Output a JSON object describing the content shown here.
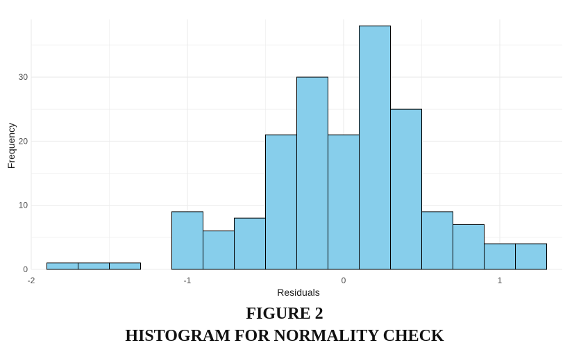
{
  "figure": {
    "number": "FIGURE 2",
    "title": "HISTOGRAM FOR NORMALITY CHECK"
  },
  "chart_data": {
    "type": "bar",
    "title": "",
    "xlabel": "Residuals",
    "ylabel": "Frequency",
    "bin_width": 0.2,
    "bin_starts": [
      -1.9,
      -1.7,
      -1.5,
      -1.3,
      -1.1,
      -0.9,
      -0.7,
      -0.5,
      -0.3,
      -0.1,
      0.1,
      0.3,
      0.5,
      0.7,
      0.9,
      1.1
    ],
    "values": [
      1,
      1,
      1,
      0,
      9,
      6,
      8,
      21,
      30,
      21,
      38,
      25,
      9,
      7,
      4,
      4
    ],
    "xlim": [
      -2.0,
      1.4
    ],
    "ylim": [
      0,
      39
    ],
    "x_ticks": [
      -2,
      -1,
      0,
      1
    ],
    "x_tick_labels": [
      "-2",
      "-1",
      "0",
      "1"
    ],
    "y_ticks": [
      0,
      10,
      20,
      30
    ],
    "y_tick_labels": [
      "0",
      "10",
      "20",
      "30"
    ],
    "grid": true,
    "colors": {
      "bar_fill": "#87ceeb",
      "bar_stroke": "#000000",
      "grid": "#ebebeb"
    }
  }
}
